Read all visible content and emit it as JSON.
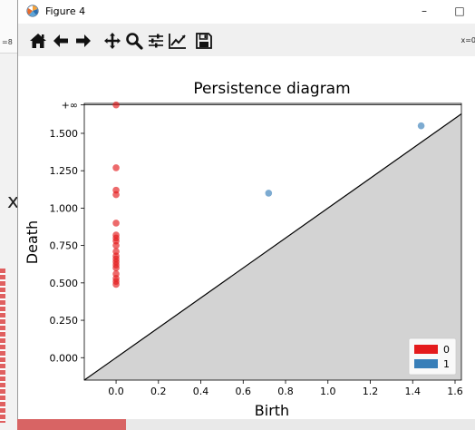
{
  "background": {
    "left_snippet": "=8",
    "left_glyph": "x"
  },
  "window": {
    "title": "Figure 4",
    "minimize_glyph": "–",
    "maximize_glyph": "□"
  },
  "toolbar": {
    "buttons": [
      "home-icon",
      "back-arrow-icon",
      "forward-arrow-icon",
      "pan-icon",
      "zoom-icon",
      "subplots-icon",
      "edit-axes-icon",
      "save-icon"
    ],
    "coordinate_readout": "x=0"
  },
  "colors": {
    "class_0": "#e41a1c",
    "class_1": "#377eb8",
    "diagonal_fill": "#d3d3d3",
    "accent_red_strip": "#d86464"
  },
  "chart_data": {
    "type": "scatter",
    "title": "Persistence diagram",
    "xlabel": "Birth",
    "ylabel": "Death",
    "xlim": [
      -0.15,
      1.63
    ],
    "ylim": [
      -0.15,
      1.7
    ],
    "infinity_level": 1.69,
    "x_ticks": [
      0.0,
      0.2,
      0.4,
      0.6,
      0.8,
      1.0,
      1.2,
      1.4,
      1.6
    ],
    "x_tick_labels": [
      "0.0",
      "0.2",
      "0.4",
      "0.6",
      "0.8",
      "1.0",
      "1.2",
      "1.4",
      "1.6"
    ],
    "y_ticks": [
      0.0,
      0.25,
      0.5,
      0.75,
      1.0,
      1.25,
      1.5
    ],
    "y_tick_labels": [
      "0.000",
      "0.250",
      "0.500",
      "0.750",
      "1.000",
      "1.250",
      "1.500"
    ],
    "infinity_label": "+∞",
    "diagonal": true,
    "grid": false,
    "legend_position": "bottom-right",
    "series": [
      {
        "name": "0",
        "color": "#e41a1c",
        "points": [
          [
            0.0,
            1.69
          ],
          [
            0.0,
            1.27
          ],
          [
            0.0,
            1.12
          ],
          [
            0.0,
            1.09
          ],
          [
            0.0,
            0.9
          ],
          [
            0.0,
            0.82
          ],
          [
            0.0,
            0.8
          ],
          [
            0.0,
            0.78
          ],
          [
            0.0,
            0.75
          ],
          [
            0.0,
            0.71
          ],
          [
            0.0,
            0.68
          ],
          [
            0.0,
            0.66
          ],
          [
            0.0,
            0.64
          ],
          [
            0.0,
            0.62
          ],
          [
            0.0,
            0.6
          ],
          [
            0.0,
            0.56
          ],
          [
            0.0,
            0.53
          ],
          [
            0.0,
            0.51
          ],
          [
            0.0,
            0.49
          ]
        ]
      },
      {
        "name": "1",
        "color": "#377eb8",
        "points": [
          [
            0.72,
            1.1
          ],
          [
            1.44,
            1.55
          ]
        ]
      }
    ]
  }
}
